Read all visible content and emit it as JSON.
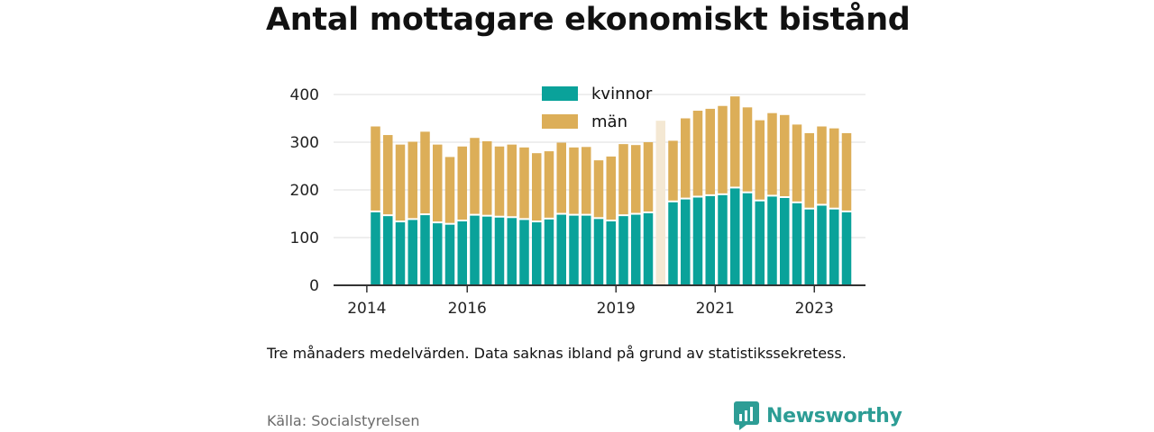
{
  "title": "Antal mottagare ekonomiskt bistånd",
  "note": "Tre månaders medelvärden. Data saknas ibland på grund av statistikssekretess.",
  "source": "Källa: Socialstyrelsen",
  "brand": {
    "name": "Newsworthy",
    "logo_icon": "bar-chart-speech-bubble"
  },
  "colors": {
    "kvinnor": "#0aa29a",
    "man": "#dcae58",
    "missing": "#f4e8d3",
    "grid": "#dddddd",
    "axis": "#333333"
  },
  "chart_data": {
    "type": "bar",
    "stacked": true,
    "title": "Antal mottagare ekonomiskt bistånd",
    "x_start": "2014-Q2",
    "categories": [
      "2014-Q2",
      "2014-Q3",
      "2014-Q4",
      "2015-Q1",
      "2015-Q2",
      "2015-Q3",
      "2015-Q4",
      "2016-Q1",
      "2016-Q2",
      "2016-Q3",
      "2016-Q4",
      "2017-Q1",
      "2017-Q2",
      "2017-Q3",
      "2017-Q4",
      "2018-Q1",
      "2018-Q2",
      "2018-Q3",
      "2018-Q4",
      "2019-Q1",
      "2019-Q2",
      "2019-Q3",
      "2019-Q4",
      "2020-Q1",
      "2020-Q2",
      "2020-Q3",
      "2020-Q4",
      "2021-Q1",
      "2021-Q2",
      "2021-Q3",
      "2021-Q4",
      "2022-Q1",
      "2022-Q2",
      "2022-Q3",
      "2022-Q4",
      "2023-Q1",
      "2023-Q2",
      "2023-Q3",
      "2023-Q4"
    ],
    "x_ticks": [
      {
        "label": "2014",
        "index": -0.7
      },
      {
        "label": "2016",
        "index": 7.4
      },
      {
        "label": "2019",
        "index": 19.4
      },
      {
        "label": "2021",
        "index": 27.4
      },
      {
        "label": "2023",
        "index": 35.4
      }
    ],
    "series": [
      {
        "name": "kvinnor",
        "values": [
          153,
          145,
          132,
          137,
          147,
          130,
          127,
          134,
          146,
          144,
          142,
          141,
          137,
          132,
          138,
          148,
          146,
          146,
          139,
          134,
          145,
          148,
          151,
          null,
          174,
          180,
          184,
          187,
          189,
          203,
          193,
          176,
          186,
          183,
          172,
          159,
          167,
          159,
          153
        ]
      },
      {
        "name": "män",
        "values": [
          180,
          170,
          163,
          164,
          175,
          165,
          142,
          157,
          163,
          158,
          149,
          154,
          152,
          145,
          143,
          151,
          143,
          144,
          123,
          136,
          151,
          146,
          149,
          null,
          129,
          170,
          182,
          183,
          187,
          193,
          180,
          170,
          175,
          174,
          165,
          160,
          166,
          170,
          166
        ]
      }
    ],
    "missing": [
      {
        "index": 23,
        "total": 345
      }
    ],
    "y_ticks": [
      0,
      100,
      200,
      300,
      400
    ],
    "ylim": [
      0,
      420
    ],
    "legend": {
      "position": "top-center",
      "entries": [
        "kvinnor",
        "män"
      ]
    },
    "grid": true
  }
}
